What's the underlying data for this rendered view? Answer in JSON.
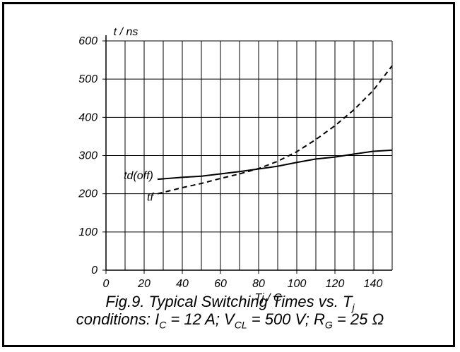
{
  "chart_data": {
    "type": "line",
    "ylabel": "t / ns",
    "xlabel": "Tj / C",
    "xlim": [
      0,
      150
    ],
    "ylim": [
      0,
      600
    ],
    "x_ticks": [
      0,
      20,
      40,
      60,
      80,
      100,
      120,
      140
    ],
    "y_ticks": [
      0,
      100,
      200,
      300,
      400,
      500,
      600
    ],
    "grid": true,
    "series": [
      {
        "name": "td(off)",
        "style": "solid",
        "x": [
          27,
          40,
          50,
          60,
          70,
          80,
          90,
          100,
          110,
          120,
          130,
          140,
          150
        ],
        "y": [
          238,
          243,
          246,
          252,
          258,
          265,
          272,
          282,
          291,
          296,
          304,
          311,
          314
        ]
      },
      {
        "name": "tf",
        "style": "dashed",
        "x": [
          27,
          40,
          50,
          60,
          70,
          80,
          90,
          100,
          110,
          120,
          130,
          140,
          150
        ],
        "y": [
          200,
          216,
          227,
          240,
          252,
          266,
          285,
          310,
          342,
          378,
          420,
          470,
          535
        ]
      }
    ],
    "caption_line1": "Fig.9.   Typical Switching Times vs. T",
    "caption_line1_sub": "j",
    "caption_line2_parts": {
      "a": "conditions: I",
      "a_sub": "C",
      "b": " = 12 A; V",
      "b_sub": "CL",
      "c": " = 500 V; R",
      "c_sub": "G",
      "d": " = 25 Ω"
    }
  }
}
